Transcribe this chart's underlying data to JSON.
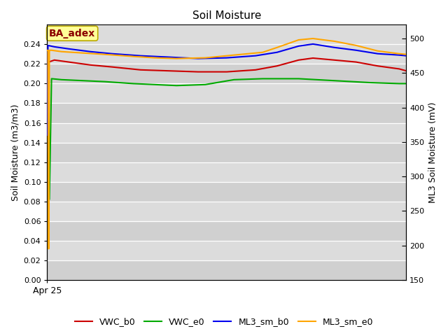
{
  "title": "Soil Moisture",
  "ylabel_left": "Soil Moisture (m3/m3)",
  "ylabel_right": "ML3 Soil Moisture (mV)",
  "xlabel": "Apr 25",
  "ylim_left": [
    0.0,
    0.26
  ],
  "ylim_right": [
    150,
    520
  ],
  "yticks_left": [
    0.0,
    0.02,
    0.04,
    0.06,
    0.08,
    0.1,
    0.12,
    0.14,
    0.16,
    0.18,
    0.2,
    0.22,
    0.24
  ],
  "yticks_right": [
    150,
    200,
    250,
    300,
    350,
    400,
    450,
    500
  ],
  "annotation_text": "BA_adex",
  "annotation_color": "#8B0000",
  "annotation_bg": "#FFFF99",
  "annotation_border": "#BBAA00",
  "plot_bg": "#DCDCDC",
  "grid_color": "#C8C8C8",
  "series": {
    "VWC_b0": {
      "color": "#CC0000",
      "axis": "left",
      "points": [
        [
          0,
          0.222
        ],
        [
          2,
          0.222
        ],
        [
          10,
          0.224
        ],
        [
          30,
          0.222
        ],
        [
          60,
          0.219
        ],
        [
          90,
          0.217
        ],
        [
          130,
          0.214
        ],
        [
          170,
          0.213
        ],
        [
          210,
          0.212
        ],
        [
          250,
          0.212
        ],
        [
          290,
          0.214
        ],
        [
          320,
          0.218
        ],
        [
          350,
          0.224
        ],
        [
          370,
          0.226
        ],
        [
          400,
          0.224
        ],
        [
          430,
          0.222
        ],
        [
          460,
          0.218
        ],
        [
          490,
          0.215
        ],
        [
          500,
          0.213
        ]
      ]
    },
    "VWC_e0": {
      "color": "#00AA00",
      "axis": "left",
      "points": [
        [
          0,
          0.222
        ],
        [
          2,
          0.222
        ],
        [
          3,
          0.082
        ],
        [
          6,
          0.205
        ],
        [
          20,
          0.204
        ],
        [
          50,
          0.203
        ],
        [
          80,
          0.202
        ],
        [
          120,
          0.2
        ],
        [
          150,
          0.199
        ],
        [
          180,
          0.198
        ],
        [
          220,
          0.199
        ],
        [
          260,
          0.204
        ],
        [
          300,
          0.205
        ],
        [
          350,
          0.205
        ],
        [
          400,
          0.203
        ],
        [
          450,
          0.201
        ],
        [
          490,
          0.2
        ],
        [
          500,
          0.2
        ]
      ]
    },
    "ML3_sm_b0": {
      "color": "#0000EE",
      "axis": "right",
      "points": [
        [
          0,
          360
        ],
        [
          1,
          490
        ],
        [
          10,
          488
        ],
        [
          30,
          485
        ],
        [
          60,
          481
        ],
        [
          90,
          478
        ],
        [
          130,
          475
        ],
        [
          170,
          473
        ],
        [
          210,
          471
        ],
        [
          250,
          472
        ],
        [
          290,
          475
        ],
        [
          320,
          480
        ],
        [
          350,
          489
        ],
        [
          370,
          492
        ],
        [
          400,
          487
        ],
        [
          430,
          483
        ],
        [
          460,
          478
        ],
        [
          490,
          476
        ],
        [
          500,
          475
        ]
      ]
    },
    "ML3_sm_e0": {
      "color": "#FFA500",
      "axis": "right",
      "points": [
        [
          0,
          483
        ],
        [
          1,
          483
        ],
        [
          2,
          195
        ],
        [
          3,
          483
        ],
        [
          6,
          483
        ],
        [
          20,
          481
        ],
        [
          50,
          479
        ],
        [
          80,
          477
        ],
        [
          120,
          474
        ],
        [
          150,
          472
        ],
        [
          180,
          471
        ],
        [
          220,
          472
        ],
        [
          260,
          476
        ],
        [
          300,
          480
        ],
        [
          320,
          487
        ],
        [
          350,
          498
        ],
        [
          370,
          500
        ],
        [
          400,
          496
        ],
        [
          430,
          490
        ],
        [
          460,
          482
        ],
        [
          490,
          478
        ],
        [
          500,
          477
        ]
      ]
    }
  },
  "legend_entries": [
    {
      "label": "VWC_b0",
      "color": "#CC0000"
    },
    {
      "label": "VWC_e0",
      "color": "#00AA00"
    },
    {
      "label": "ML3_sm_b0",
      "color": "#0000EE"
    },
    {
      "label": "ML3_sm_e0",
      "color": "#FFA500"
    }
  ]
}
